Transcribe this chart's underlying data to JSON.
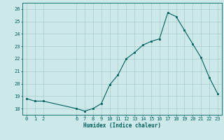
{
  "x": [
    0,
    1,
    2,
    6,
    7,
    8,
    9,
    10,
    11,
    12,
    13,
    14,
    15,
    16,
    17,
    18,
    19,
    20,
    21,
    22,
    23
  ],
  "y": [
    18.8,
    18.6,
    18.6,
    18.0,
    17.8,
    18.0,
    18.4,
    19.9,
    20.7,
    22.0,
    22.5,
    23.1,
    23.4,
    23.6,
    25.7,
    25.4,
    24.3,
    23.2,
    22.1,
    20.5,
    19.2
  ],
  "xlabel": "Humidex (Indice chaleur)",
  "ylim": [
    17.5,
    26.5
  ],
  "xlim": [
    -0.5,
    23.5
  ],
  "xticks": [
    0,
    1,
    2,
    6,
    7,
    8,
    9,
    10,
    11,
    12,
    13,
    14,
    15,
    16,
    17,
    18,
    19,
    20,
    21,
    22,
    23
  ],
  "yticks": [
    18,
    19,
    20,
    21,
    22,
    23,
    24,
    25,
    26
  ],
  "line_color": "#006060",
  "marker_color": "#006060",
  "bg_color": "#cce8e8",
  "grid_color": "#aacccc",
  "text_color": "#006060",
  "xlabel_fontsize": 5.5,
  "tick_fontsize": 5.0,
  "linewidth": 0.8,
  "markersize": 2.0
}
